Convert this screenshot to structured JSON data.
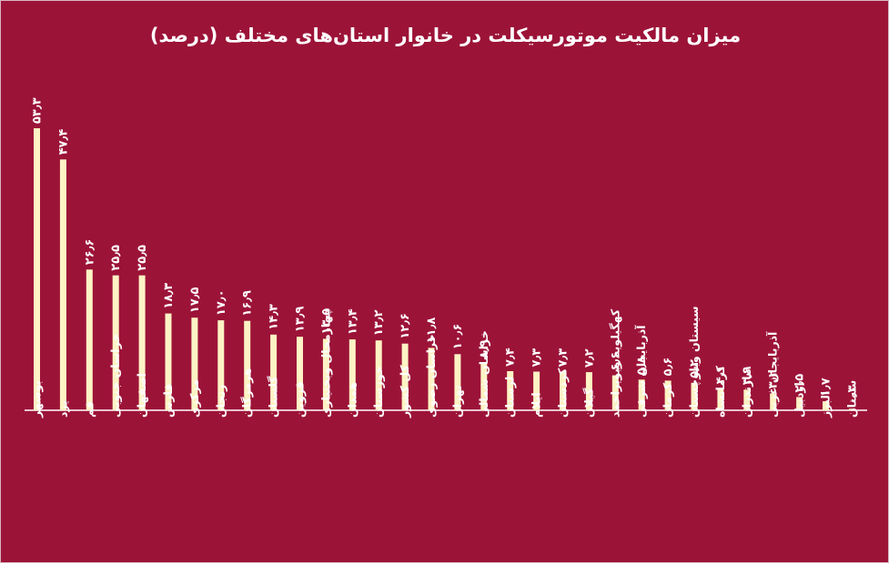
{
  "chart_data": {
    "type": "bar",
    "title": "میزان مالکیت موتورسیکلت در خانوار استان‌های مختلف (درصد)",
    "categories": [
      "بوشهر",
      "یزد",
      "قم",
      "خراسان جنوبی",
      "اصفهان",
      "فارس",
      "مرکزی",
      "زنجان",
      "هرمزگان",
      "گلستان",
      "قزوین",
      "چهارمحال وبختیاری",
      "همدان",
      "خوزستان",
      "کل کشور",
      "خراسان رضوی",
      "تهران",
      "خراسان شمالی",
      "لرستان",
      "ایلام",
      "کردستان",
      "گیلان",
      "کهگیلویه وبویراحمد",
      "آذربایجان شرقی",
      "کرمان",
      "سیستان وبلوچستان",
      "کرمانشاه",
      "مازندران",
      "آذربایجان غربی",
      "اردبیل",
      "البرز",
      "سمنان"
    ],
    "values": [
      53.3,
      47.4,
      26.6,
      25.5,
      25.5,
      18.3,
      17.5,
      17.0,
      16.9,
      14.3,
      13.9,
      13.5,
      13.4,
      13.2,
      12.6,
      11.8,
      10.6,
      8.9,
      7.4,
      7.3,
      7.3,
      7.2,
      6.6,
      5.8,
      5.6,
      5.2,
      4.1,
      3.9,
      3.2,
      2.5,
      1.7,
      0.3
    ],
    "value_labels": [
      "۵۳٫۳",
      "۴۷٫۴",
      "۲۶٫۶",
      "۲۵٫۵",
      "۲۵٫۵",
      "۱۸٫۳",
      "۱۷٫۵",
      "۱۷٫۰",
      "۱۶٫۹",
      "۱۴٫۳",
      "۱۳٫۹",
      "۱۳٫۵",
      "۱۳٫۴",
      "۱۳٫۲",
      "۱۲٫۶",
      "۱۱٫۸",
      "۱۰٫۶",
      "۸٫۹",
      "۷٫۴",
      "۷٫۳",
      "۷٫۳",
      "۷٫۲",
      "۶٫۶",
      "۵٫۸",
      "۵٫۶",
      "۵٫۲",
      "۴٫۱",
      "۳٫۹",
      "۳٫۲",
      "۲٫۵",
      "۱٫۷",
      "۰٫۳"
    ],
    "ylim": [
      0,
      55
    ],
    "grid": false,
    "legend": "none",
    "colors": {
      "background": "#9c1338",
      "bar": "#fdf3c4",
      "text": "#ffffff"
    }
  }
}
